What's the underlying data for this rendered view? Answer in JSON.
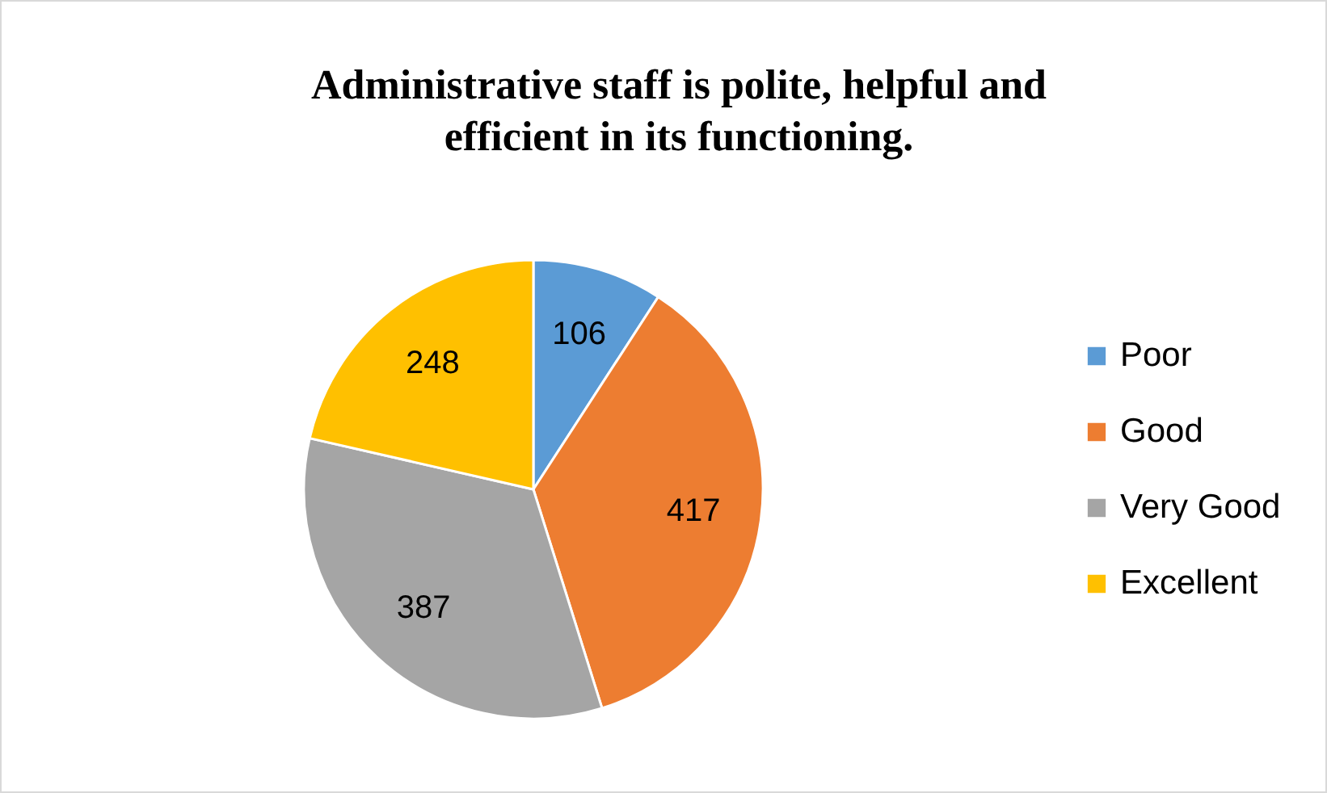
{
  "chart_data": {
    "type": "pie",
    "title": "Administrative staff is polite, helpful and efficient in its functioning.",
    "categories": [
      "Poor",
      "Good",
      "Very Good",
      "Excellent"
    ],
    "values": [
      106,
      417,
      387,
      248
    ],
    "colors": [
      "#5b9bd5",
      "#ed7d31",
      "#a5a5a5",
      "#ffc000"
    ],
    "data_labels": true,
    "legend": "right"
  }
}
